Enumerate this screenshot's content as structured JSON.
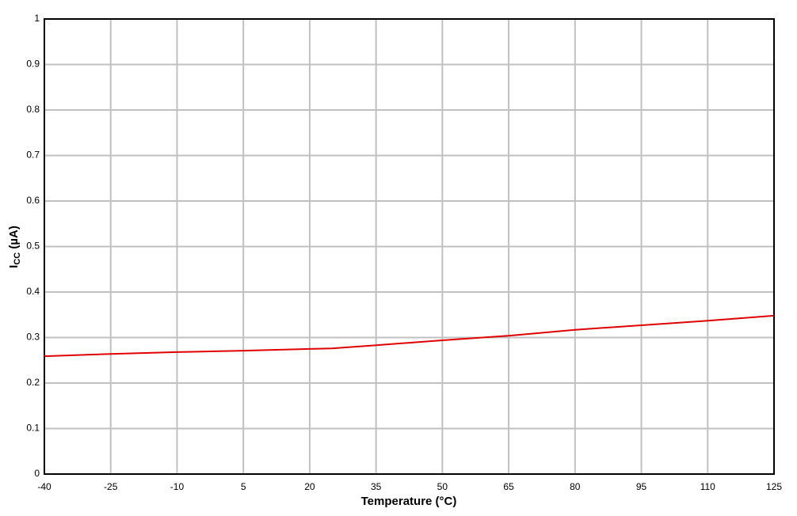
{
  "chart_data": {
    "type": "line",
    "xlabel": "Temperature (°C)",
    "ylabel": [
      "I",
      "CC",
      " (µA)"
    ],
    "x": [
      -40,
      -25,
      -10,
      5,
      20,
      25,
      35,
      50,
      65,
      80,
      95,
      110,
      125
    ],
    "series": [
      {
        "color": "#e00000",
        "values": [
          0.259,
          0.264,
          0.268,
          0.271,
          0.275,
          0.276,
          0.283,
          0.294,
          0.304,
          0.317,
          0.327,
          0.337,
          0.348
        ]
      }
    ],
    "xlim": [
      -40,
      125
    ],
    "xticks": [
      -40,
      -25,
      -10,
      5,
      20,
      35,
      50,
      65,
      80,
      95,
      110,
      125
    ],
    "ylim": [
      0,
      1
    ],
    "yticks": [
      0,
      0.1,
      0.2,
      0.3,
      0.4,
      0.5,
      0.6,
      0.7,
      0.8,
      0.9,
      1
    ],
    "grid": true
  }
}
